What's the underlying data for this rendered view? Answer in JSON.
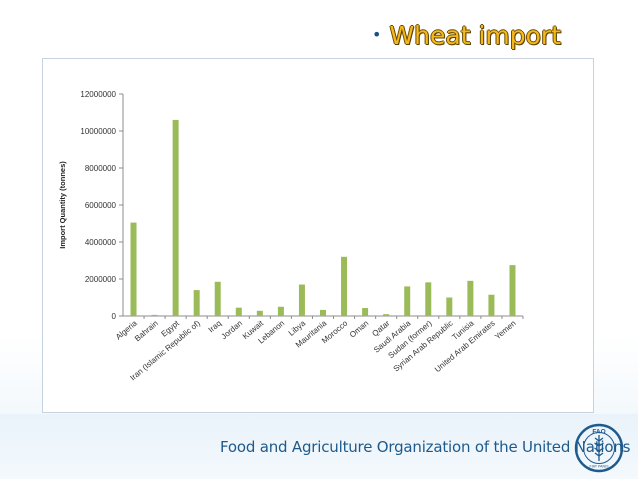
{
  "slide": {
    "title_bullet": "•",
    "title": "Wheat import",
    "footer_org": "Food and Agriculture Organization of the United Nations",
    "logo_text": "FAO",
    "logo_motto": "FIAT PANIS"
  },
  "colors": {
    "bar": "#9bbb59",
    "title_text": "#f5b81c",
    "footer_text": "#1e5a8c",
    "logo": "#1e5a8c"
  },
  "chart_data": {
    "type": "bar",
    "title": "",
    "xlabel": "",
    "ylabel": "Import Quantity (tonnes)",
    "ylim": [
      0,
      12000000
    ],
    "yticks": [
      "0",
      "2000000",
      "4000000",
      "6000000",
      "8000000",
      "10000000",
      "12000000"
    ],
    "ytick_values": [
      0,
      2000000,
      4000000,
      6000000,
      8000000,
      10000000,
      12000000
    ],
    "grid": false,
    "legend": "none",
    "categories": [
      "Algeria",
      "Bahrain",
      "Egypt",
      "Iran (Islamic Republic of)",
      "Iraq",
      "Jordan",
      "Kuwait",
      "Lebanon",
      "Libya",
      "Mauritania",
      "Morocco",
      "Oman",
      "Qatar",
      "Saudi Arabia",
      "Sudan (former)",
      "Syrian Arab Republic",
      "Tunisia",
      "United Arab Emirates",
      "Yemen"
    ],
    "values": [
      5050000,
      60000,
      10600000,
      1400000,
      1850000,
      450000,
      280000,
      500000,
      1700000,
      330000,
      3200000,
      430000,
      100000,
      1600000,
      1820000,
      1000000,
      1900000,
      1150000,
      2750000
    ]
  }
}
